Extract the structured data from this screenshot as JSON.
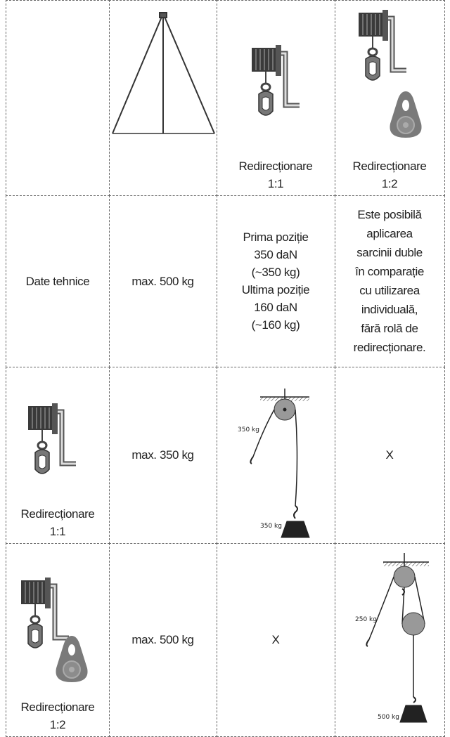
{
  "table": {
    "header": {
      "winch_1_1": [
        "Redirecționare",
        "1:1"
      ],
      "winch_1_2": [
        "Redirecționare",
        "1:2"
      ]
    },
    "rows": [
      {
        "label": [
          "Date tehnice"
        ],
        "tripod": "max. 500 kg",
        "redirect_1_1": [
          "Prima poziție",
          "350 daN",
          "(~350 kg)",
          "Ultima poziție",
          "160 daN",
          "(~160 kg)"
        ],
        "redirect_1_2": [
          "Este posibilă",
          "aplicarea",
          "sarcinii duble",
          "în comparație",
          "cu utilizarea",
          "individuală,",
          "fără rolă de",
          "redirecționare."
        ]
      },
      {
        "label": [
          "Redirecționare",
          "1:1"
        ],
        "tripod": "max. 350 kg",
        "redirect_1_1": {
          "rope_load": "350 kg",
          "weight": "350 kg"
        },
        "redirect_1_2": "X"
      },
      {
        "label": [
          "Redirecționare",
          "1:2"
        ],
        "tripod": "max. 500 kg",
        "redirect_1_1": "X",
        "redirect_1_2": {
          "rope_load": "250 kg",
          "weight": "500 kg"
        }
      }
    ]
  }
}
